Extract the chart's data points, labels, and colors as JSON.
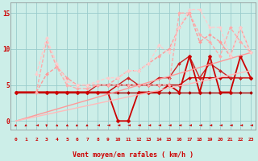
{
  "bg_color": "#cceee8",
  "grid_color": "#99cccc",
  "xlabel": "Vent moyen/en rafales ( km/h )",
  "xlim": [
    -0.5,
    23.5
  ],
  "ylim": [
    -1.2,
    16.5
  ],
  "yticks": [
    0,
    5,
    10,
    15
  ],
  "xticks": [
    0,
    1,
    2,
    3,
    4,
    5,
    6,
    7,
    8,
    9,
    10,
    11,
    12,
    13,
    14,
    15,
    16,
    17,
    18,
    19,
    20,
    21,
    22,
    23
  ],
  "lines": [
    {
      "x": [
        0,
        3,
        4,
        5,
        6,
        7,
        8,
        9,
        10,
        11,
        12,
        13,
        14,
        15,
        16,
        17,
        18,
        19,
        20,
        21,
        22,
        23
      ],
      "y": [
        4,
        4,
        4,
        4,
        4,
        4,
        4,
        4,
        4,
        4,
        4,
        4,
        4,
        4,
        4,
        4,
        4,
        4,
        4,
        4,
        4,
        4
      ],
      "color": "#aa0000",
      "lw": 1.0,
      "marker": "D",
      "markersize": 2,
      "ls": "-"
    },
    {
      "x": [
        0,
        3,
        4,
        5,
        6,
        7,
        8,
        9,
        10,
        11,
        12,
        13,
        14,
        15,
        16,
        17,
        18,
        19,
        20,
        21,
        22,
        23
      ],
      "y": [
        4,
        4,
        4,
        4,
        4,
        4,
        4,
        4,
        5,
        5,
        5,
        5,
        5,
        5,
        5,
        6,
        6,
        6,
        6,
        6,
        6,
        6
      ],
      "color": "#cc0000",
      "lw": 1.0,
      "marker": "D",
      "markersize": 2,
      "ls": "-"
    },
    {
      "x": [
        0,
        3,
        4,
        5,
        6,
        7,
        8,
        9,
        10,
        11,
        12,
        13,
        14,
        15,
        16,
        17,
        18,
        19,
        20,
        21,
        22,
        23
      ],
      "y": [
        4,
        4,
        4,
        4,
        4,
        4,
        5,
        5,
        5,
        6,
        5,
        5,
        6,
        6,
        8,
        9,
        6,
        8,
        7,
        6,
        6,
        6
      ],
      "color": "#cc2222",
      "lw": 1.0,
      "marker": "D",
      "markersize": 2,
      "ls": "-"
    },
    {
      "x": [
        0,
        3,
        4,
        5,
        6,
        7,
        8,
        9,
        10,
        11,
        12,
        13,
        14,
        15,
        16,
        17,
        18,
        19,
        20,
        21,
        22,
        23
      ],
      "y": [
        4,
        4,
        4,
        4,
        4,
        4,
        4,
        4,
        0,
        0,
        4,
        4,
        4,
        5,
        4,
        9,
        4,
        9,
        4,
        4,
        9,
        6
      ],
      "color": "#cc0000",
      "lw": 1.3,
      "marker": "D",
      "markersize": 2.5,
      "ls": "-"
    },
    {
      "x": [
        0,
        23
      ],
      "y": [
        0,
        9.5
      ],
      "color": "#ff9999",
      "lw": 1.0,
      "marker": null,
      "ls": "-"
    },
    {
      "x": [
        0,
        23
      ],
      "y": [
        0,
        7
      ],
      "color": "#ffbbbb",
      "lw": 1.0,
      "marker": null,
      "ls": "-"
    },
    {
      "x": [
        2,
        3,
        4,
        5,
        6,
        7,
        8,
        9,
        10,
        11,
        12,
        13,
        14,
        15,
        16,
        17,
        18,
        19,
        20,
        21,
        22,
        23
      ],
      "y": [
        4,
        6.5,
        7.5,
        6,
        5,
        5,
        5,
        5,
        6,
        7,
        7,
        8,
        9,
        10,
        13,
        15,
        11,
        12,
        11,
        9,
        13,
        9.5
      ],
      "color": "#ff9999",
      "lw": 1.0,
      "marker": "D",
      "markersize": 2,
      "ls": "--"
    },
    {
      "x": [
        2,
        3,
        4,
        5,
        6,
        7,
        8,
        9,
        10,
        11,
        12,
        13,
        14,
        15,
        16,
        17,
        18,
        19,
        20,
        21,
        22,
        23
      ],
      "y": [
        4,
        11,
        7.5,
        5,
        4.5,
        4.5,
        5,
        5,
        5,
        5,
        5,
        5,
        5,
        5,
        15,
        15,
        12,
        11,
        9,
        13,
        11,
        9.5
      ],
      "color": "#ffaaaa",
      "lw": 1.0,
      "marker": "D",
      "markersize": 2,
      "ls": "--"
    },
    {
      "x": [
        2,
        3,
        4,
        5,
        6,
        7,
        8,
        9,
        10,
        11,
        12,
        13,
        14,
        15,
        16,
        17,
        18,
        19,
        20,
        21,
        22,
        23
      ],
      "y": [
        6.5,
        11.5,
        8,
        5.5,
        5,
        5,
        5.5,
        6,
        6,
        7,
        7,
        8,
        10.5,
        9.5,
        13,
        15.5,
        15.5,
        13,
        13,
        9,
        13,
        9.5
      ],
      "color": "#ffcccc",
      "lw": 1.0,
      "marker": "D",
      "markersize": 2,
      "ls": "--"
    }
  ],
  "wind_arrows": {
    "x": [
      0,
      1,
      2,
      3,
      4,
      5,
      6,
      7,
      8,
      9,
      10,
      11,
      12,
      13,
      14,
      15,
      16,
      17,
      18,
      19,
      20,
      21,
      22,
      23
    ],
    "angles": [
      225,
      225,
      270,
      180,
      135,
      135,
      225,
      225,
      270,
      270,
      270,
      270,
      270,
      270,
      270,
      270,
      270,
      270,
      270,
      270,
      270,
      270,
      270,
      270
    ]
  }
}
